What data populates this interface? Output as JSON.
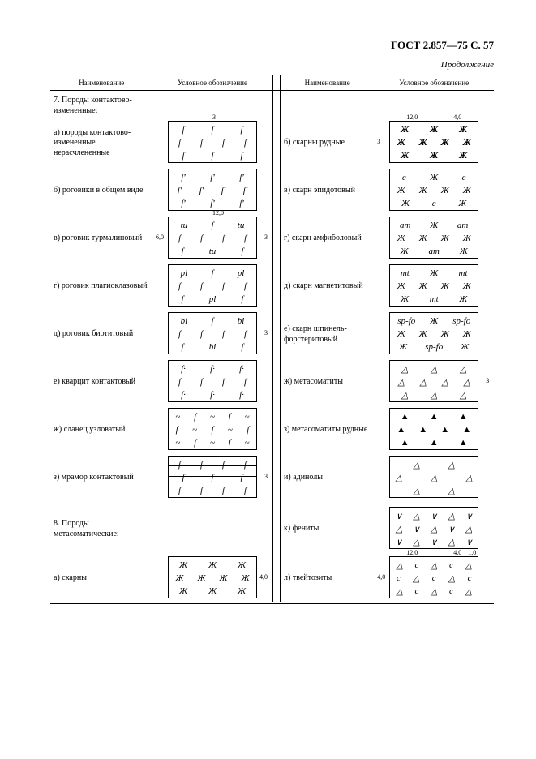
{
  "doc": {
    "header": "ГОСТ 2.857—75 С. 57",
    "continuation": "Продолжение",
    "col_headers": [
      "Наименование",
      "Условное обозначение",
      "Наименование",
      "Условное обозначение"
    ]
  },
  "left_section7": "7. Породы контактово-измененные:",
  "left_section8": "8. Породы метасоматические:",
  "left_rows": [
    {
      "label": "а) породы контактово-измененные нерасчлененные",
      "pattern": "f",
      "marks": {
        "top": "3"
      }
    },
    {
      "label": "б) роговики в общем виде",
      "pattern": "f-quote"
    },
    {
      "label": "в) роговик турмалиновый",
      "pattern": "f-tu",
      "marks": {
        "top": "12,0",
        "left": "6,0",
        "right": "3"
      }
    },
    {
      "label": "г) роговик плагиоклазовый",
      "pattern": "f-pl"
    },
    {
      "label": "д) роговик биотитовый",
      "pattern": "f-bi",
      "marks": {
        "right": "3"
      }
    },
    {
      "label": "е) кварцит контактовый",
      "pattern": "f-dot"
    },
    {
      "label": "ж) сланец узловатый",
      "pattern": "f-tilde"
    },
    {
      "label": "з) мрамор контактовый",
      "pattern": "f-brick",
      "marks": {
        "right": "3"
      }
    }
  ],
  "left_skarn": {
    "label": "а) скарны",
    "pattern": "xx",
    "marks": {
      "right": "4,0"
    }
  },
  "right_rows": [
    {
      "label": "б) скарны рудные",
      "pattern": "xx-bold",
      "marks": {
        "top1": "12,0",
        "top2": "4,0",
        "left": "3"
      }
    },
    {
      "label": "в) скарн эпидотовый",
      "pattern": "xx-e"
    },
    {
      "label": "г) скарн амфиболовый",
      "pattern": "xx-am"
    },
    {
      "label": "д) скарн магнетитовый",
      "pattern": "xx-mt"
    },
    {
      "label": "е) скарн шпинель-форстеритовый",
      "pattern": "xx-spfo"
    },
    {
      "label": "ж) метасоматиты",
      "pattern": "tri",
      "marks": {
        "right": "3"
      }
    },
    {
      "label": "з) метасоматиты рудные",
      "pattern": "tri-bold"
    },
    {
      "label": "и) адинолы",
      "pattern": "tri-dash"
    },
    {
      "label": "к) фениты",
      "pattern": "tri-v"
    },
    {
      "label": "л) твейтозиты",
      "pattern": "tri-carbon",
      "marks": {
        "top1": "12,0",
        "top2": "4,0",
        "top3": "1,0",
        "left": "4,0"
      }
    }
  ]
}
